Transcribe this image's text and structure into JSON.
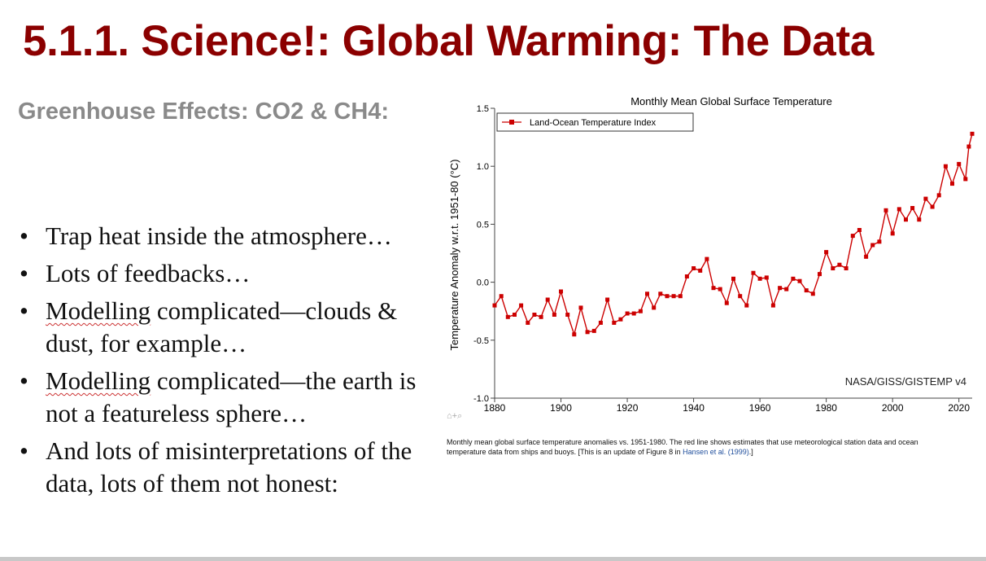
{
  "slide": {
    "title": "5.1.1. Science!: Global Warming: The Data",
    "subheading": "Greenhouse Effects: CO2 & CH4:",
    "bullets": [
      {
        "prefix": "",
        "underlined": "",
        "text": "Trap heat inside the atmosphere…"
      },
      {
        "prefix": "",
        "underlined": "",
        "text": "Lots of feedbacks…"
      },
      {
        "prefix": "",
        "underlined": "Modelling",
        "text": " complicated—clouds & dust, for example…"
      },
      {
        "prefix": "",
        "underlined": "Modelling",
        "text": " complicated—the earth is not a featureless sphere…"
      },
      {
        "prefix": "",
        "underlined": "",
        "text": "And lots of misinterpretations of the data, lots of them not honest:"
      }
    ],
    "colors": {
      "title": "#8b0000",
      "subheading": "#8a8a8a",
      "series": "#cc0000"
    }
  },
  "caption": {
    "text": "Monthly mean global surface temperature anomalies vs. 1951-1980. The red line shows estimates that use meteorological station data and ocean temperature data from ships and buoys. [This is an update of Figure 8 in ",
    "link": "Hansen et al. (1999)",
    "end": ".]"
  },
  "chart_data": {
    "type": "line",
    "title": "Monthly Mean Global Surface Temperature",
    "xlabel": "",
    "ylabel": "Temperature Anomaly w.r.t. 1951-80 (°C)",
    "xlim": [
      1880,
      2024
    ],
    "ylim": [
      -1.0,
      1.5
    ],
    "xticks": [
      1880,
      1900,
      1920,
      1940,
      1960,
      1980,
      2000,
      2020
    ],
    "yticks": [
      -1.0,
      -0.5,
      0.0,
      0.5,
      1.0,
      1.5
    ],
    "ytick_labels": [
      "-1.0",
      "-0.5",
      "0.0",
      "0.5",
      "1.0",
      "1.5"
    ],
    "legend": "Land-Ocean Temperature Index",
    "annotation": "NASA/GISS/GISTEMP v4",
    "series": [
      {
        "name": "Land-Ocean Temperature Index",
        "x": [
          1880,
          1882,
          1884,
          1886,
          1888,
          1890,
          1892,
          1894,
          1896,
          1898,
          1900,
          1902,
          1904,
          1906,
          1908,
          1910,
          1912,
          1914,
          1916,
          1918,
          1920,
          1922,
          1924,
          1926,
          1928,
          1930,
          1932,
          1934,
          1936,
          1938,
          1940,
          1942,
          1944,
          1946,
          1948,
          1950,
          1952,
          1954,
          1956,
          1958,
          1960,
          1962,
          1964,
          1966,
          1968,
          1970,
          1972,
          1974,
          1976,
          1978,
          1980,
          1982,
          1984,
          1986,
          1988,
          1990,
          1992,
          1994,
          1996,
          1998,
          2000,
          2002,
          2004,
          2006,
          2008,
          2010,
          2012,
          2014,
          2016,
          2018,
          2020,
          2022,
          2023,
          2024
        ],
        "values": [
          -0.2,
          -0.12,
          -0.3,
          -0.28,
          -0.2,
          -0.35,
          -0.28,
          -0.3,
          -0.15,
          -0.28,
          -0.08,
          -0.28,
          -0.45,
          -0.22,
          -0.43,
          -0.42,
          -0.35,
          -0.15,
          -0.35,
          -0.32,
          -0.27,
          -0.27,
          -0.25,
          -0.1,
          -0.22,
          -0.1,
          -0.12,
          -0.12,
          -0.12,
          0.05,
          0.12,
          0.1,
          0.2,
          -0.05,
          -0.06,
          -0.18,
          0.03,
          -0.12,
          -0.2,
          0.08,
          0.03,
          0.04,
          -0.2,
          -0.05,
          -0.06,
          0.03,
          0.01,
          -0.07,
          -0.1,
          0.07,
          0.26,
          0.12,
          0.15,
          0.12,
          0.4,
          0.45,
          0.22,
          0.32,
          0.35,
          0.62,
          0.42,
          0.63,
          0.54,
          0.64,
          0.54,
          0.72,
          0.65,
          0.75,
          1.0,
          0.85,
          1.02,
          0.89,
          1.17,
          1.28
        ]
      }
    ]
  }
}
